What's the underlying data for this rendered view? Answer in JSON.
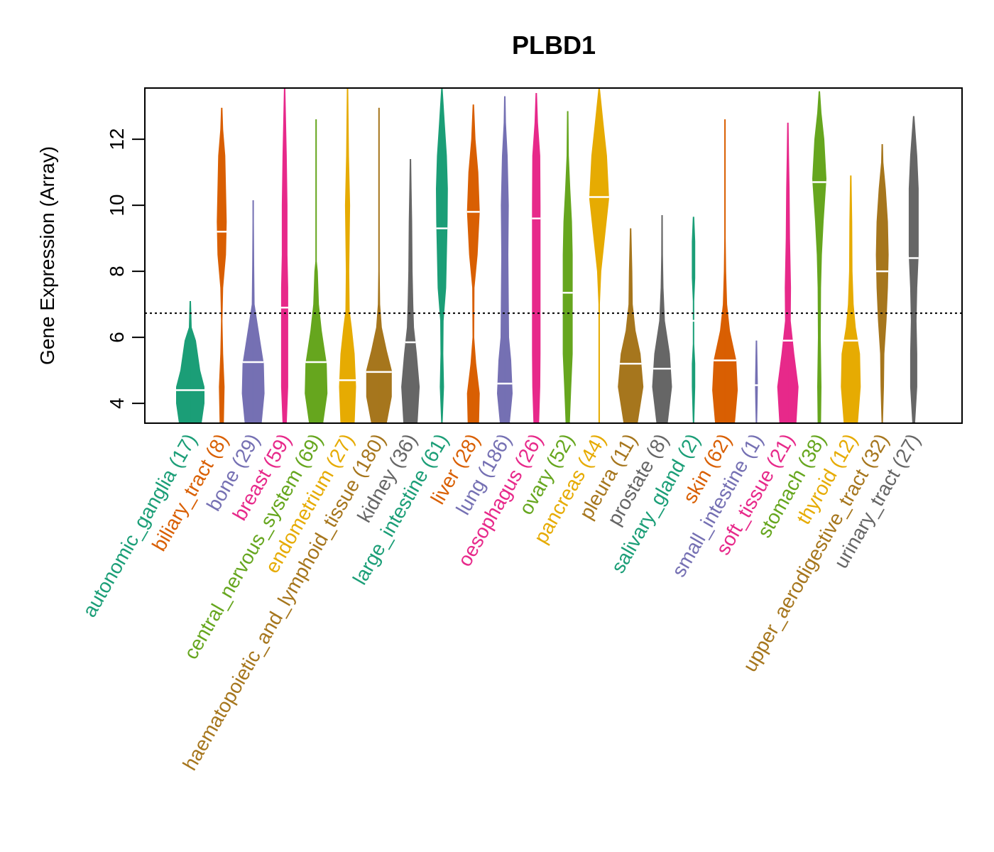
{
  "chart_data": {
    "type": "violin",
    "title": "PLBD1",
    "xlabel": "",
    "ylabel": "Gene Expression (Array)",
    "ylim": [
      3.4,
      13.55
    ],
    "yticks": [
      4,
      6,
      8,
      10,
      12
    ],
    "reference_line": {
      "value": 6.73,
      "style": "dotted"
    },
    "grid": false,
    "legend": "none",
    "series": [
      {
        "name": "autonomic_ganglia",
        "n": 17,
        "color": "#1B9E77",
        "min": 3.4,
        "max": 7.1,
        "median": 4.4,
        "shape": [
          [
            3.4,
            0.8
          ],
          [
            4.0,
            1.0
          ],
          [
            4.5,
            1.0
          ],
          [
            5.0,
            0.7
          ],
          [
            5.9,
            0.4
          ],
          [
            6.3,
            0.1
          ],
          [
            7.1,
            0.02
          ]
        ]
      },
      {
        "name": "biliary_tract",
        "n": 8,
        "color": "#D95F02",
        "min": 3.4,
        "max": 12.95,
        "median": 9.2,
        "shape": [
          [
            3.4,
            0.15
          ],
          [
            4.5,
            0.2
          ],
          [
            5.5,
            0.1
          ],
          [
            6.5,
            0.02
          ],
          [
            7.5,
            0.1
          ],
          [
            8.5,
            0.3
          ],
          [
            9.5,
            0.35
          ],
          [
            10.5,
            0.3
          ],
          [
            11.5,
            0.25
          ],
          [
            12.3,
            0.1
          ],
          [
            12.95,
            0.02
          ]
        ]
      },
      {
        "name": "bone",
        "n": 29,
        "color": "#7570B3",
        "min": 3.4,
        "max": 10.15,
        "median": 5.25,
        "shape": [
          [
            3.4,
            0.6
          ],
          [
            4.3,
            0.8
          ],
          [
            5.2,
            0.75
          ],
          [
            6.3,
            0.35
          ],
          [
            7.0,
            0.1
          ],
          [
            8.2,
            0.07
          ],
          [
            9.5,
            0.04
          ],
          [
            10.15,
            0.01
          ]
        ]
      },
      {
        "name": "breast",
        "n": 59,
        "color": "#E7298A",
        "min": 3.4,
        "max": 13.55,
        "median": 6.9,
        "shape": [
          [
            3.4,
            0.15
          ],
          [
            4.5,
            0.25
          ],
          [
            5.5,
            0.25
          ],
          [
            6.5,
            0.25
          ],
          [
            7.5,
            0.25
          ],
          [
            8.5,
            0.2
          ],
          [
            10.0,
            0.2
          ],
          [
            11.5,
            0.15
          ],
          [
            12.5,
            0.1
          ],
          [
            13.55,
            0.02
          ]
        ]
      },
      {
        "name": "central_nervous_system",
        "n": 69,
        "color": "#66A61E",
        "min": 3.4,
        "max": 12.6,
        "median": 5.25,
        "shape": [
          [
            3.4,
            0.5
          ],
          [
            4.3,
            0.8
          ],
          [
            5.2,
            0.75
          ],
          [
            6.2,
            0.4
          ],
          [
            7.0,
            0.2
          ],
          [
            8.0,
            0.12
          ],
          [
            8.3,
            0.04
          ],
          [
            10.0,
            0.03
          ],
          [
            12.6,
            0.01
          ]
        ]
      },
      {
        "name": "endometrium",
        "n": 27,
        "color": "#E6AB02",
        "min": 3.4,
        "max": 13.55,
        "median": 4.7,
        "shape": [
          [
            3.4,
            0.5
          ],
          [
            4.5,
            0.6
          ],
          [
            5.5,
            0.5
          ],
          [
            6.3,
            0.3
          ],
          [
            6.8,
            0.15
          ],
          [
            8.0,
            0.12
          ],
          [
            10.0,
            0.18
          ],
          [
            11.5,
            0.1
          ],
          [
            13.55,
            0.01
          ]
        ]
      },
      {
        "name": "haematopoietic_and_lymphoid_tissue",
        "n": 180,
        "color": "#A6761D",
        "min": 3.4,
        "max": 12.95,
        "median": 4.95,
        "shape": [
          [
            3.4,
            0.55
          ],
          [
            4.2,
            0.9
          ],
          [
            5.0,
            0.9
          ],
          [
            5.6,
            0.55
          ],
          [
            6.3,
            0.2
          ],
          [
            7.0,
            0.08
          ],
          [
            8.0,
            0.03
          ],
          [
            10.0,
            0.03
          ],
          [
            12.95,
            0.01
          ]
        ]
      },
      {
        "name": "kidney",
        "n": 36,
        "color": "#666666",
        "min": 3.4,
        "max": 11.4,
        "median": 5.85,
        "shape": [
          [
            3.4,
            0.5
          ],
          [
            4.5,
            0.65
          ],
          [
            5.5,
            0.45
          ],
          [
            6.3,
            0.25
          ],
          [
            7.0,
            0.2
          ],
          [
            8.0,
            0.15
          ],
          [
            9.5,
            0.12
          ],
          [
            10.5,
            0.08
          ],
          [
            11.4,
            0.01
          ]
        ]
      },
      {
        "name": "large_intestine",
        "n": 61,
        "color": "#1B9E77",
        "min": 3.4,
        "max": 13.55,
        "median": 9.3,
        "shape": [
          [
            3.4,
            0.05
          ],
          [
            4.5,
            0.15
          ],
          [
            5.5,
            0.1
          ],
          [
            6.5,
            0.12
          ],
          [
            7.5,
            0.3
          ],
          [
            8.5,
            0.35
          ],
          [
            9.5,
            0.4
          ],
          [
            10.5,
            0.42
          ],
          [
            11.5,
            0.35
          ],
          [
            12.5,
            0.2
          ],
          [
            13.55,
            0.01
          ]
        ]
      },
      {
        "name": "liver",
        "n": 28,
        "color": "#D95F02",
        "min": 3.4,
        "max": 13.05,
        "median": 9.8,
        "shape": [
          [
            3.4,
            0.4
          ],
          [
            4.3,
            0.45
          ],
          [
            5.2,
            0.2
          ],
          [
            6.0,
            0.06
          ],
          [
            7.5,
            0.08
          ],
          [
            8.5,
            0.3
          ],
          [
            9.8,
            0.45
          ],
          [
            11.0,
            0.35
          ],
          [
            12.0,
            0.15
          ],
          [
            13.05,
            0.01
          ]
        ]
      },
      {
        "name": "lung",
        "n": 186,
        "color": "#7570B3",
        "min": 3.4,
        "max": 13.3,
        "median": 4.6,
        "shape": [
          [
            3.4,
            0.35
          ],
          [
            4.3,
            0.55
          ],
          [
            5.3,
            0.45
          ],
          [
            6.0,
            0.3
          ],
          [
            7.0,
            0.28
          ],
          [
            8.5,
            0.25
          ],
          [
            10.0,
            0.28
          ],
          [
            11.5,
            0.2
          ],
          [
            12.5,
            0.08
          ],
          [
            13.3,
            0.01
          ]
        ]
      },
      {
        "name": "oesophagus",
        "n": 26,
        "color": "#E7298A",
        "min": 3.4,
        "max": 13.4,
        "median": 9.6,
        "shape": [
          [
            3.4,
            0.2
          ],
          [
            4.5,
            0.28
          ],
          [
            5.5,
            0.3
          ],
          [
            7.0,
            0.3
          ],
          [
            8.5,
            0.3
          ],
          [
            10.0,
            0.3
          ],
          [
            11.5,
            0.28
          ],
          [
            12.5,
            0.12
          ],
          [
            13.4,
            0.02
          ]
        ]
      },
      {
        "name": "ovary",
        "n": 52,
        "color": "#66A61E",
        "min": 3.4,
        "max": 12.85,
        "median": 7.35,
        "shape": [
          [
            3.4,
            0.15
          ],
          [
            4.5,
            0.25
          ],
          [
            5.5,
            0.35
          ],
          [
            6.5,
            0.35
          ],
          [
            7.5,
            0.35
          ],
          [
            8.5,
            0.35
          ],
          [
            9.5,
            0.3
          ],
          [
            10.5,
            0.18
          ],
          [
            11.5,
            0.08
          ],
          [
            12.85,
            0.01
          ]
        ]
      },
      {
        "name": "pancreas",
        "n": 44,
        "color": "#E6AB02",
        "min": 3.4,
        "max": 13.55,
        "median": 10.25,
        "shape": [
          [
            3.4,
            0.02
          ],
          [
            5.5,
            0.03
          ],
          [
            7.0,
            0.05
          ],
          [
            8.0,
            0.15
          ],
          [
            9.0,
            0.4
          ],
          [
            10.2,
            0.7
          ],
          [
            11.5,
            0.55
          ],
          [
            12.5,
            0.3
          ],
          [
            13.55,
            0.02
          ]
        ]
      },
      {
        "name": "pleura",
        "n": 11,
        "color": "#A6761D",
        "min": 3.4,
        "max": 9.3,
        "median": 5.2,
        "shape": [
          [
            3.4,
            0.5
          ],
          [
            4.5,
            0.9
          ],
          [
            5.5,
            0.7
          ],
          [
            6.2,
            0.35
          ],
          [
            7.0,
            0.15
          ],
          [
            8.0,
            0.12
          ],
          [
            9.3,
            0.01
          ]
        ]
      },
      {
        "name": "prostate",
        "n": 8,
        "color": "#666666",
        "min": 3.4,
        "max": 9.7,
        "median": 5.05,
        "shape": [
          [
            3.4,
            0.4
          ],
          [
            4.5,
            0.7
          ],
          [
            5.5,
            0.55
          ],
          [
            6.5,
            0.2
          ],
          [
            7.5,
            0.1
          ],
          [
            8.5,
            0.06
          ],
          [
            9.7,
            0.01
          ]
        ]
      },
      {
        "name": "salivary_gland",
        "n": 2,
        "color": "#1B9E77",
        "min": 3.4,
        "max": 9.65,
        "median": 6.5,
        "shape": [
          [
            3.4,
            0.05
          ],
          [
            4.5,
            0.12
          ],
          [
            5.2,
            0.12
          ],
          [
            5.8,
            0.04
          ],
          [
            7.1,
            0.04
          ],
          [
            7.8,
            0.12
          ],
          [
            8.9,
            0.12
          ],
          [
            9.65,
            0.04
          ]
        ]
      },
      {
        "name": "skin",
        "n": 62,
        "color": "#D95F02",
        "min": 3.4,
        "max": 12.6,
        "median": 5.3,
        "shape": [
          [
            3.4,
            0.7
          ],
          [
            4.4,
            0.9
          ],
          [
            5.3,
            0.8
          ],
          [
            6.2,
            0.35
          ],
          [
            7.0,
            0.15
          ],
          [
            8.0,
            0.08
          ],
          [
            9.0,
            0.03
          ],
          [
            10.5,
            0.02
          ],
          [
            12.6,
            0.01
          ]
        ]
      },
      {
        "name": "small_intestine",
        "n": 1,
        "color": "#7570B3",
        "min": 3.4,
        "max": 5.9,
        "median": 4.55,
        "shape": [
          [
            3.4,
            0.04
          ],
          [
            4.0,
            0.08
          ],
          [
            4.55,
            0.1
          ],
          [
            5.1,
            0.08
          ],
          [
            5.9,
            0.01
          ]
        ]
      },
      {
        "name": "soft_tissue",
        "n": 21,
        "color": "#E7298A",
        "min": 3.4,
        "max": 12.5,
        "median": 5.9,
        "shape": [
          [
            3.4,
            0.6
          ],
          [
            4.5,
            0.75
          ],
          [
            5.5,
            0.45
          ],
          [
            6.5,
            0.2
          ],
          [
            7.5,
            0.22
          ],
          [
            9.0,
            0.15
          ],
          [
            10.5,
            0.12
          ],
          [
            11.5,
            0.08
          ],
          [
            12.5,
            0.01
          ]
        ]
      },
      {
        "name": "stomach",
        "n": 38,
        "color": "#66A61E",
        "min": 3.4,
        "max": 13.45,
        "median": 10.7,
        "shape": [
          [
            3.4,
            0.12
          ],
          [
            4.5,
            0.15
          ],
          [
            6.0,
            0.1
          ],
          [
            7.5,
            0.12
          ],
          [
            8.5,
            0.18
          ],
          [
            9.5,
            0.3
          ],
          [
            10.8,
            0.5
          ],
          [
            12.0,
            0.35
          ],
          [
            12.8,
            0.15
          ],
          [
            13.45,
            0.01
          ]
        ]
      },
      {
        "name": "thyroid",
        "n": 12,
        "color": "#E6AB02",
        "min": 3.4,
        "max": 10.9,
        "median": 5.9,
        "shape": [
          [
            3.4,
            0.5
          ],
          [
            4.5,
            0.7
          ],
          [
            5.5,
            0.65
          ],
          [
            6.3,
            0.35
          ],
          [
            7.0,
            0.2
          ],
          [
            8.0,
            0.12
          ],
          [
            9.5,
            0.1
          ],
          [
            10.9,
            0.01
          ]
        ]
      },
      {
        "name": "upper_aerodigestive_tract",
        "n": 32,
        "color": "#A6761D",
        "min": 3.4,
        "max": 11.85,
        "median": 8.0,
        "shape": [
          [
            3.4,
            0.05
          ],
          [
            4.5,
            0.12
          ],
          [
            5.5,
            0.15
          ],
          [
            6.5,
            0.3
          ],
          [
            7.5,
            0.4
          ],
          [
            8.5,
            0.45
          ],
          [
            9.5,
            0.4
          ],
          [
            10.5,
            0.25
          ],
          [
            11.3,
            0.08
          ],
          [
            11.85,
            0.01
          ]
        ]
      },
      {
        "name": "urinary_tract",
        "n": 27,
        "color": "#666666",
        "min": 3.4,
        "max": 12.7,
        "median": 8.4,
        "shape": [
          [
            3.4,
            0.1
          ],
          [
            4.5,
            0.25
          ],
          [
            5.5,
            0.25
          ],
          [
            6.5,
            0.2
          ],
          [
            7.5,
            0.25
          ],
          [
            8.5,
            0.35
          ],
          [
            9.5,
            0.35
          ],
          [
            10.5,
            0.35
          ],
          [
            11.5,
            0.25
          ],
          [
            12.7,
            0.01
          ]
        ]
      }
    ]
  }
}
